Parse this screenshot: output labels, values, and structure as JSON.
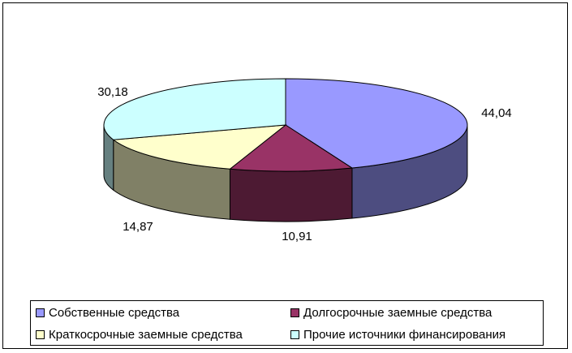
{
  "chart_data": {
    "type": "pie",
    "variant": "3d",
    "title": "",
    "categories": [
      "Собственные средства",
      "Долгосрочные заемные средства",
      "Краткосрочные заемные средства",
      "Прочие источники финансирования"
    ],
    "values": [
      44.04,
      10.91,
      14.87,
      30.18
    ],
    "data_labels": [
      "44,04",
      "10,91",
      "14,87",
      "30,18"
    ],
    "colors": [
      "#9999ff",
      "#993366",
      "#ffffcc",
      "#ccffff"
    ],
    "side_colors": [
      "#4d4d80",
      "#4d1a33",
      "#808066",
      "#668080"
    ],
    "legend_position": "bottom"
  }
}
